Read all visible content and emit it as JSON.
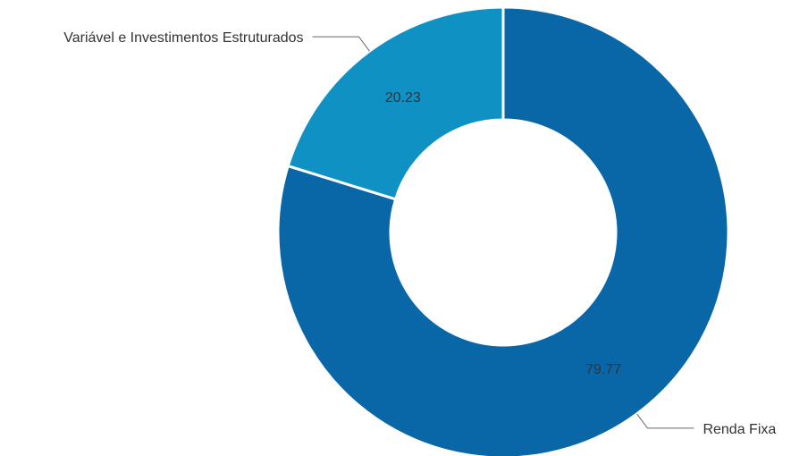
{
  "chart_data": {
    "type": "pie",
    "variant": "donut",
    "slices": [
      {
        "label": "Renda Fixa",
        "value": 79.77,
        "value_label": "79.77",
        "color": "#0967a8"
      },
      {
        "label": "Variável e Investimentos Estruturados",
        "value": 20.23,
        "value_label": "20.23",
        "color": "#0f91c4"
      }
    ],
    "legend": "none"
  }
}
